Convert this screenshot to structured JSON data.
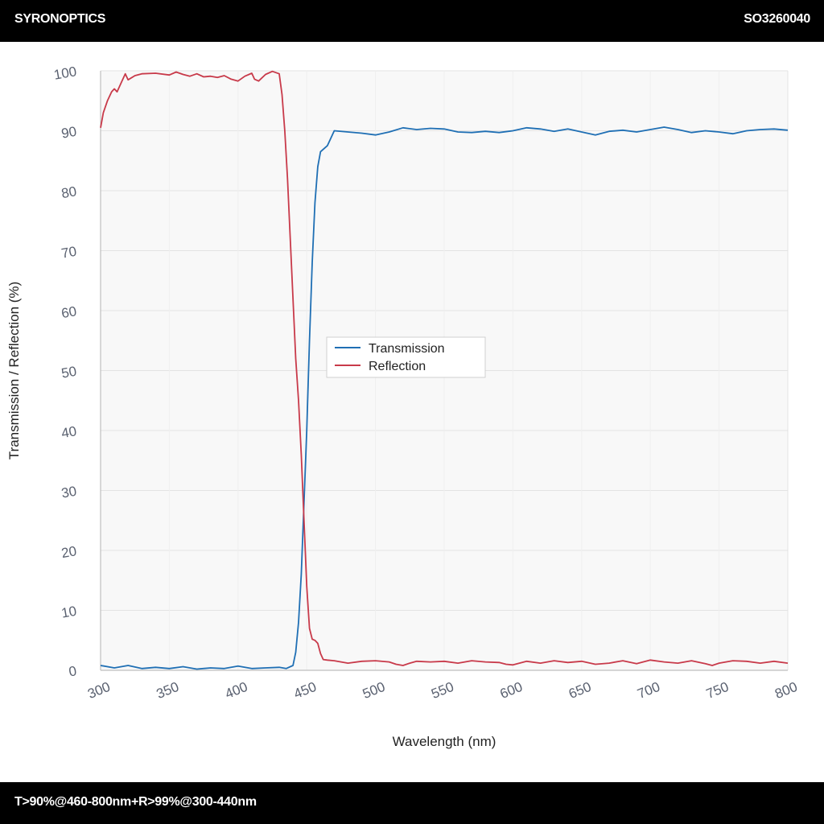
{
  "header": {
    "brand": "SYRONOPTICS",
    "code": "SO3260040"
  },
  "footer": {
    "spec": "T>90%@460-800nm+R>99%@300-440nm"
  },
  "chart_data": {
    "type": "line",
    "xlabel": "Wavelength (nm)",
    "ylabel": "Transmission / Reflection (%)",
    "xlim": [
      300,
      800
    ],
    "ylim": [
      0,
      100
    ],
    "xticks": [
      300,
      350,
      400,
      450,
      500,
      550,
      600,
      650,
      700,
      750,
      800
    ],
    "yticks": [
      0,
      10,
      20,
      30,
      40,
      50,
      60,
      70,
      80,
      90,
      100
    ],
    "grid": true,
    "legend_position": "center",
    "series": [
      {
        "name": "Transmission",
        "color": "#1f6fb4",
        "points": [
          [
            300,
            0.8
          ],
          [
            310,
            0.4
          ],
          [
            320,
            0.8
          ],
          [
            330,
            0.3
          ],
          [
            340,
            0.5
          ],
          [
            350,
            0.3
          ],
          [
            360,
            0.6
          ],
          [
            370,
            0.2
          ],
          [
            380,
            0.4
          ],
          [
            390,
            0.3
          ],
          [
            400,
            0.7
          ],
          [
            410,
            0.3
          ],
          [
            420,
            0.4
          ],
          [
            430,
            0.5
          ],
          [
            435,
            0.3
          ],
          [
            440,
            0.8
          ],
          [
            442,
            3
          ],
          [
            444,
            8
          ],
          [
            446,
            16
          ],
          [
            448,
            28
          ],
          [
            450,
            40
          ],
          [
            452,
            55
          ],
          [
            454,
            68
          ],
          [
            456,
            78
          ],
          [
            458,
            84
          ],
          [
            460,
            86.5
          ],
          [
            465,
            87.5
          ],
          [
            470,
            90
          ],
          [
            480,
            89.8
          ],
          [
            490,
            89.6
          ],
          [
            500,
            89.3
          ],
          [
            510,
            89.8
          ],
          [
            520,
            90.5
          ],
          [
            530,
            90.2
          ],
          [
            540,
            90.4
          ],
          [
            550,
            90.3
          ],
          [
            560,
            89.8
          ],
          [
            570,
            89.7
          ],
          [
            580,
            89.9
          ],
          [
            590,
            89.7
          ],
          [
            600,
            90
          ],
          [
            610,
            90.5
          ],
          [
            620,
            90.3
          ],
          [
            630,
            89.9
          ],
          [
            640,
            90.3
          ],
          [
            650,
            89.8
          ],
          [
            660,
            89.3
          ],
          [
            670,
            89.9
          ],
          [
            680,
            90.1
          ],
          [
            690,
            89.8
          ],
          [
            700,
            90.2
          ],
          [
            710,
            90.6
          ],
          [
            720,
            90.2
          ],
          [
            730,
            89.7
          ],
          [
            740,
            90
          ],
          [
            750,
            89.8
          ],
          [
            760,
            89.5
          ],
          [
            770,
            90
          ],
          [
            780,
            90.2
          ],
          [
            790,
            90.3
          ],
          [
            800,
            90.1
          ]
        ]
      },
      {
        "name": "Reflection",
        "color": "#c83a4a",
        "points": [
          [
            300,
            90.5
          ],
          [
            302,
            93
          ],
          [
            305,
            95
          ],
          [
            308,
            96.5
          ],
          [
            310,
            97
          ],
          [
            312,
            96.5
          ],
          [
            315,
            98
          ],
          [
            318,
            99.5
          ],
          [
            320,
            98.5
          ],
          [
            325,
            99.2
          ],
          [
            330,
            99.5
          ],
          [
            340,
            99.6
          ],
          [
            350,
            99.3
          ],
          [
            355,
            99.8
          ],
          [
            360,
            99.4
          ],
          [
            365,
            99.1
          ],
          [
            370,
            99.5
          ],
          [
            375,
            99
          ],
          [
            380,
            99.1
          ],
          [
            385,
            98.9
          ],
          [
            390,
            99.2
          ],
          [
            395,
            98.6
          ],
          [
            400,
            98.3
          ],
          [
            405,
            99.1
          ],
          [
            410,
            99.6
          ],
          [
            412,
            98.6
          ],
          [
            415,
            98.3
          ],
          [
            420,
            99.4
          ],
          [
            425,
            99.9
          ],
          [
            430,
            99.5
          ],
          [
            432,
            96
          ],
          [
            434,
            90
          ],
          [
            436,
            82
          ],
          [
            438,
            72
          ],
          [
            440,
            62
          ],
          [
            442,
            52
          ],
          [
            444,
            45
          ],
          [
            446,
            36
          ],
          [
            448,
            25
          ],
          [
            450,
            14
          ],
          [
            452,
            7
          ],
          [
            454,
            5.2
          ],
          [
            456,
            5
          ],
          [
            458,
            4.5
          ],
          [
            460,
            2.8
          ],
          [
            462,
            1.8
          ],
          [
            465,
            1.7
          ],
          [
            470,
            1.6
          ],
          [
            480,
            1.2
          ],
          [
            490,
            1.5
          ],
          [
            500,
            1.6
          ],
          [
            510,
            1.4
          ],
          [
            515,
            1
          ],
          [
            520,
            0.8
          ],
          [
            525,
            1.2
          ],
          [
            530,
            1.5
          ],
          [
            540,
            1.4
          ],
          [
            550,
            1.5
          ],
          [
            560,
            1.2
          ],
          [
            570,
            1.6
          ],
          [
            580,
            1.4
          ],
          [
            590,
            1.3
          ],
          [
            595,
            1
          ],
          [
            600,
            0.9
          ],
          [
            610,
            1.5
          ],
          [
            620,
            1.2
          ],
          [
            630,
            1.6
          ],
          [
            640,
            1.3
          ],
          [
            650,
            1.5
          ],
          [
            660,
            1.0
          ],
          [
            670,
            1.2
          ],
          [
            680,
            1.6
          ],
          [
            690,
            1.1
          ],
          [
            700,
            1.7
          ],
          [
            710,
            1.4
          ],
          [
            720,
            1.2
          ],
          [
            730,
            1.6
          ],
          [
            740,
            1.1
          ],
          [
            745,
            0.8
          ],
          [
            750,
            1.2
          ],
          [
            760,
            1.6
          ],
          [
            770,
            1.5
          ],
          [
            780,
            1.2
          ],
          [
            790,
            1.5
          ],
          [
            800,
            1.2
          ]
        ]
      }
    ]
  }
}
